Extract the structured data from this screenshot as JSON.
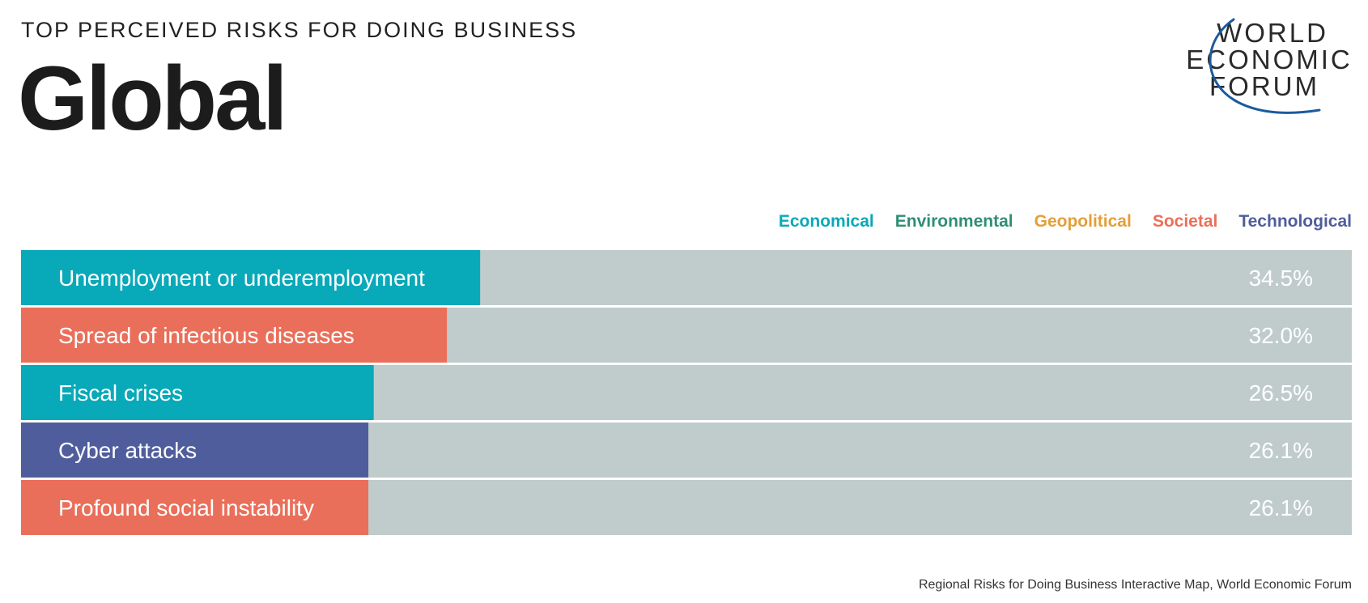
{
  "header": {
    "kicker": "TOP PERCEIVED RISKS FOR DOING BUSINESS",
    "title": "Global"
  },
  "logo": {
    "line1": "WORLD",
    "line2": "ECONOMIC",
    "line3": "FORUM",
    "icon": "wef-arc-logo"
  },
  "legend": {
    "items": [
      {
        "label": "Economical",
        "color": "#08a9b9"
      },
      {
        "label": "Environmental",
        "color": "#2e8f74"
      },
      {
        "label": "Geopolitical",
        "color": "#e39f3a"
      },
      {
        "label": "Societal",
        "color": "#ea6f5a"
      },
      {
        "label": "Technological",
        "color": "#505d9c"
      }
    ]
  },
  "chart_data": {
    "type": "bar",
    "orientation": "horizontal",
    "categories": [
      "Unemployment or underemployment",
      "Spread of infectious diseases",
      "Fiscal crises",
      "Cyber attacks",
      "Profound social instability"
    ],
    "values": [
      34.5,
      32.0,
      26.5,
      26.1,
      26.1
    ],
    "value_labels": [
      "34.5%",
      "32.0%",
      "26.5%",
      "26.1%",
      "26.1%"
    ],
    "risk_category": [
      "Economical",
      "Societal",
      "Economical",
      "Technological",
      "Societal"
    ],
    "bar_colors": [
      "#08a9b9",
      "#ea6f5a",
      "#08a9b9",
      "#505d9c",
      "#ea6f5a"
    ],
    "track_color": "#c0cccc",
    "xlim": [
      0,
      100
    ],
    "grid": false,
    "legend_position": "top-right"
  },
  "footer": {
    "source": "Regional Risks for Doing Business Interactive Map, World Economic Forum"
  }
}
